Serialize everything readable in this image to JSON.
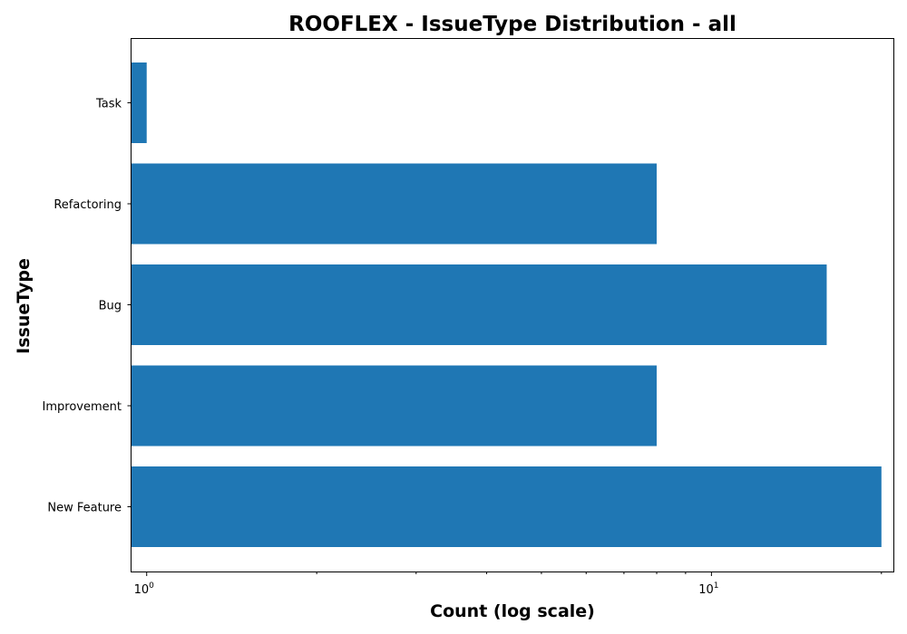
{
  "chart_data": {
    "type": "bar",
    "orientation": "horizontal",
    "title": "ROOFLEX - IssueType Distribution - all",
    "xlabel": "Count (log scale)",
    "ylabel": "IssueType",
    "x_scale": "log",
    "xlim": [
      0.94,
      21
    ],
    "categories": [
      "New Feature",
      "Improvement",
      "Bug",
      "Refactoring",
      "Task"
    ],
    "values": [
      20,
      8,
      16,
      8,
      1
    ],
    "bar_color": "#1f77b4",
    "grid": false,
    "legend": "none",
    "x_ticks": [
      {
        "value": 1,
        "base": "10",
        "exp": "0"
      },
      {
        "value": 10,
        "base": "10",
        "exp": "1"
      }
    ]
  }
}
